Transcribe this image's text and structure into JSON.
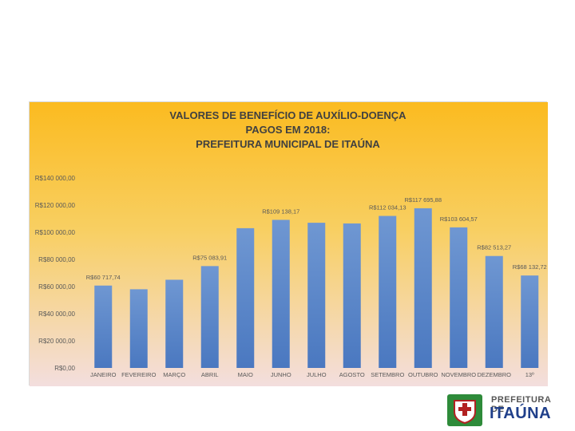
{
  "chart_data": {
    "type": "bar",
    "title_lines": [
      "VALORES DE BENEFÍCIO DE AUXÍLIO-DOENÇA",
      "PAGOS EM 2018:",
      "PREFEITURA MUNICIPAL DE ITAÚNA"
    ],
    "categories": [
      "JANEIRO",
      "FEVEREIRO",
      "MARÇO",
      "ABRIL",
      "MAIO",
      "JUNHO",
      "JULHO",
      "AGOSTO",
      "SETEMBRO",
      "OUTUBRO",
      "NOVEMBRO",
      "DEZEMBRO",
      "13º"
    ],
    "values": [
      60717.74,
      58000,
      65000,
      75083.91,
      103000,
      109138.17,
      107000,
      106500,
      112034.13,
      117695.88,
      103604.57,
      82513.27,
      68132.72
    ],
    "data_labels": [
      "R$60 717,74",
      "",
      "",
      "R$75 083,91",
      "",
      "R$109 138,17",
      "",
      "",
      "R$112 034,13",
      "R$117 695,88",
      "R$103 604,57",
      "R$82 513,27",
      "R$68 132,72"
    ],
    "ylim": [
      0,
      140000
    ],
    "y_ticks": [
      0,
      20000,
      40000,
      60000,
      80000,
      100000,
      120000,
      140000
    ],
    "y_tick_labels": [
      "R$0,00",
      "R$20 000,00",
      "R$40 000,00",
      "R$60 000,00",
      "R$80 000,00",
      "R$100 000,00",
      "R$120 000,00",
      "R$140 000,00"
    ],
    "grid": false,
    "legend": "none",
    "colors": {
      "bar_top": "#6f97d2",
      "bar_bottom": "#4a78c0",
      "bg_top": "#fbbb20",
      "bg_bottom": "#f3dede"
    }
  },
  "logo": {
    "top_text": "PREFEITURA DE",
    "main_text": "ITAÚNA"
  }
}
